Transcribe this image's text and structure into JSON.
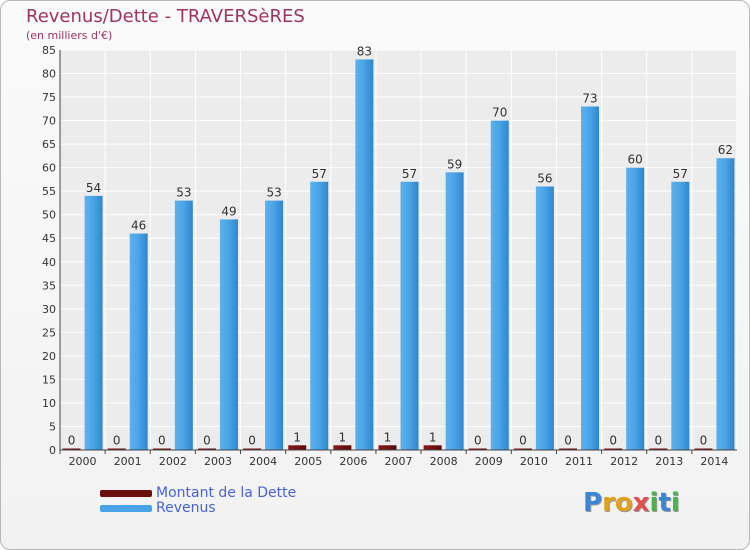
{
  "header": {
    "title": "Revenus/Dette - TRAVERSèRES",
    "subtitle": "(en milliers d'€)"
  },
  "legend": {
    "items": [
      {
        "label": "Montant de la Dette",
        "color": "#6b0f0f"
      },
      {
        "label": "Revenus",
        "color": "#4aa3e6"
      }
    ]
  },
  "logo": {
    "letters": [
      {
        "ch": "P",
        "color": "#3a86d6"
      },
      {
        "ch": "r",
        "color": "#e0a020"
      },
      {
        "ch": "o",
        "color": "#e0a020"
      },
      {
        "ch": "x",
        "color": "#e05050"
      },
      {
        "ch": "i",
        "color": "#4cb04c"
      },
      {
        "ch": "t",
        "color": "#3a86d6"
      },
      {
        "ch": "i",
        "color": "#4cb04c"
      }
    ]
  },
  "chart_data": {
    "type": "bar",
    "categories": [
      "2000",
      "2001",
      "2002",
      "2003",
      "2004",
      "2005",
      "2006",
      "2007",
      "2008",
      "2009",
      "2010",
      "2011",
      "2012",
      "2013",
      "2014"
    ],
    "series": [
      {
        "name": "Montant de la Dette",
        "color": "#6b0f0f",
        "values": [
          0,
          0,
          0,
          0,
          0,
          1,
          1,
          1,
          1,
          0,
          0,
          0,
          0,
          0,
          0
        ]
      },
      {
        "name": "Revenus",
        "color": "#4aa3e6",
        "values": [
          54,
          46,
          53,
          49,
          53,
          57,
          83,
          57,
          59,
          70,
          56,
          73,
          60,
          57,
          62
        ]
      }
    ],
    "ylim": [
      0,
      85
    ],
    "ytick_step": 5,
    "grid": true
  }
}
